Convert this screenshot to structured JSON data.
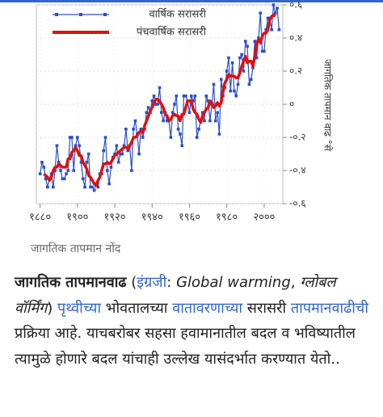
{
  "chart_data": {
    "type": "line",
    "y_label": "जागतिक तापमान वाढ °से",
    "x": [
      1880,
      1881,
      1882,
      1883,
      1884,
      1885,
      1886,
      1887,
      1888,
      1889,
      1890,
      1891,
      1892,
      1893,
      1894,
      1895,
      1896,
      1897,
      1898,
      1899,
      1900,
      1901,
      1902,
      1903,
      1904,
      1905,
      1906,
      1907,
      1908,
      1909,
      1910,
      1911,
      1912,
      1913,
      1914,
      1915,
      1916,
      1917,
      1918,
      1919,
      1920,
      1921,
      1922,
      1923,
      1924,
      1925,
      1926,
      1927,
      1928,
      1929,
      1930,
      1931,
      1932,
      1933,
      1934,
      1935,
      1936,
      1937,
      1938,
      1939,
      1940,
      1941,
      1942,
      1943,
      1944,
      1945,
      1946,
      1947,
      1948,
      1949,
      1950,
      1951,
      1952,
      1953,
      1954,
      1955,
      1956,
      1957,
      1958,
      1959,
      1960,
      1961,
      1962,
      1963,
      1964,
      1965,
      1966,
      1967,
      1968,
      1969,
      1970,
      1971,
      1972,
      1973,
      1974,
      1975,
      1976,
      1977,
      1978,
      1979,
      1980,
      1981,
      1982,
      1983,
      1984,
      1985,
      1986,
      1987,
      1988,
      1989,
      1990,
      1991,
      1992,
      1993,
      1994,
      1995,
      1996,
      1997,
      1998,
      1999,
      2000,
      2001,
      2002,
      2003,
      2004,
      2005,
      2006,
      2007,
      2008
    ],
    "series": [
      {
        "name": "वार्षिक सरासरी",
        "color": "#2b50c8",
        "values": [
          -0.42,
          -0.35,
          -0.38,
          -0.45,
          -0.5,
          -0.45,
          -0.42,
          -0.5,
          -0.4,
          -0.25,
          -0.35,
          -0.4,
          -0.45,
          -0.45,
          -0.42,
          -0.4,
          -0.2,
          -0.2,
          -0.4,
          -0.25,
          -0.2,
          -0.25,
          -0.35,
          -0.45,
          -0.5,
          -0.35,
          -0.3,
          -0.5,
          -0.5,
          -0.52,
          -0.48,
          -0.5,
          -0.42,
          -0.42,
          -0.28,
          -0.2,
          -0.4,
          -0.48,
          -0.38,
          -0.32,
          -0.3,
          -0.25,
          -0.35,
          -0.3,
          -0.3,
          -0.25,
          -0.15,
          -0.28,
          -0.25,
          -0.4,
          -0.15,
          -0.1,
          -0.18,
          -0.3,
          -0.15,
          -0.2,
          -0.15,
          -0.05,
          -0.02,
          -0.05,
          0.02,
          0.05,
          0.0,
          0.0,
          0.1,
          -0.05,
          -0.1,
          -0.05,
          -0.1,
          -0.1,
          -0.2,
          -0.05,
          0.0,
          0.05,
          -0.15,
          -0.18,
          -0.25,
          0.05,
          0.05,
          0.02,
          -0.05,
          0.05,
          0.02,
          0.05,
          -0.2,
          -0.15,
          -0.1,
          -0.05,
          -0.1,
          0.05,
          0.02,
          -0.1,
          0.0,
          0.12,
          -0.1,
          -0.05,
          -0.18,
          0.15,
          0.05,
          0.1,
          0.2,
          0.28,
          0.08,
          0.25,
          0.08,
          0.05,
          0.12,
          0.28,
          0.3,
          0.2,
          0.38,
          0.35,
          0.12,
          0.15,
          0.22,
          0.38,
          0.28,
          0.4,
          0.55,
          0.32,
          0.32,
          0.45,
          0.52,
          0.52,
          0.45,
          0.6,
          0.55,
          0.58,
          0.45
        ]
      },
      {
        "name": "पंचवार्षिक सरासरी",
        "color": "#e01010",
        "values": [
          null,
          null,
          -0.42,
          -0.43,
          -0.44,
          -0.46,
          -0.44,
          -0.4,
          -0.38,
          -0.38,
          -0.36,
          -0.37,
          -0.38,
          -0.38,
          -0.38,
          -0.33,
          -0.33,
          -0.29,
          -0.28,
          -0.26,
          -0.28,
          -0.31,
          -0.31,
          -0.35,
          -0.37,
          -0.39,
          -0.43,
          -0.44,
          -0.46,
          -0.48,
          -0.49,
          -0.46,
          -0.44,
          -0.4,
          -0.36,
          -0.36,
          -0.35,
          -0.36,
          -0.35,
          -0.33,
          -0.31,
          -0.3,
          -0.29,
          -0.28,
          -0.27,
          -0.26,
          -0.26,
          -0.27,
          -0.25,
          -0.23,
          -0.2,
          -0.2,
          -0.19,
          -0.17,
          -0.16,
          -0.17,
          -0.13,
          -0.1,
          -0.07,
          -0.04,
          -0.02,
          0.01,
          0.03,
          0.03,
          0.02,
          0.0,
          -0.02,
          -0.06,
          -0.07,
          -0.1,
          -0.09,
          -0.07,
          -0.06,
          -0.07,
          -0.07,
          -0.1,
          -0.06,
          -0.06,
          -0.02,
          0.02,
          0.02,
          0.02,
          -0.03,
          -0.05,
          -0.06,
          -0.09,
          -0.11,
          -0.07,
          -0.05,
          -0.03,
          -0.02,
          0.02,
          0.01,
          -0.02,
          -0.01,
          0.01,
          -0.01,
          0.01,
          0.09,
          0.13,
          0.15,
          0.18,
          0.17,
          0.17,
          0.17,
          0.16,
          0.16,
          0.19,
          0.23,
          0.26,
          0.29,
          0.25,
          0.26,
          0.26,
          0.23,
          0.29,
          0.37,
          0.39,
          0.37,
          0.41,
          0.43,
          0.43,
          0.45,
          0.51,
          0.53,
          0.54,
          0.53,
          null,
          null
        ]
      }
    ],
    "xlim": [
      1878,
      2010
    ],
    "ylim": [
      -0.6,
      0.6
    ],
    "xticks": [
      {
        "value": 1880,
        "label": "१८८०"
      },
      {
        "value": 1900,
        "label": "१९००"
      },
      {
        "value": 1920,
        "label": "१९२०"
      },
      {
        "value": 1940,
        "label": "१९४०"
      },
      {
        "value": 1960,
        "label": "१९६०"
      },
      {
        "value": 1980,
        "label": "१९८०"
      },
      {
        "value": 2000,
        "label": "२०००"
      }
    ],
    "yticks": [
      {
        "value": -0.6,
        "label": "-०.६"
      },
      {
        "value": -0.4,
        "label": "-०.४"
      },
      {
        "value": -0.2,
        "label": "-०.२"
      },
      {
        "value": 0,
        "label": "०"
      },
      {
        "value": 0.2,
        "label": "०.२"
      },
      {
        "value": 0.4,
        "label": "०.४"
      },
      {
        "value": 0.6,
        "label": "०.६"
      }
    ],
    "grid": true,
    "legend": "top-left"
  },
  "caption": "जागतिक तापमान नोंद",
  "paragraph": [
    "जागतिक तापमानवाढ",
    " (",
    "इंग्रजी",
    ": ",
    "Global warming",
    ", ",
    "ग्लोबल वॉर्मिंग",
    ") ",
    "पृथ्वीच्या",
    " भोवतालच्या ",
    "वातावरणाच्या",
    " सरासरी ",
    "तापमानवाढीची",
    " प्रक्रिया आहे. याचबरोबर सहसा हवामानातील बदल व भविष्यातील त्यामुळे होणारे बदल यांचाही उल्लेख यासंदर्भात करण्यात येतो.."
  ]
}
